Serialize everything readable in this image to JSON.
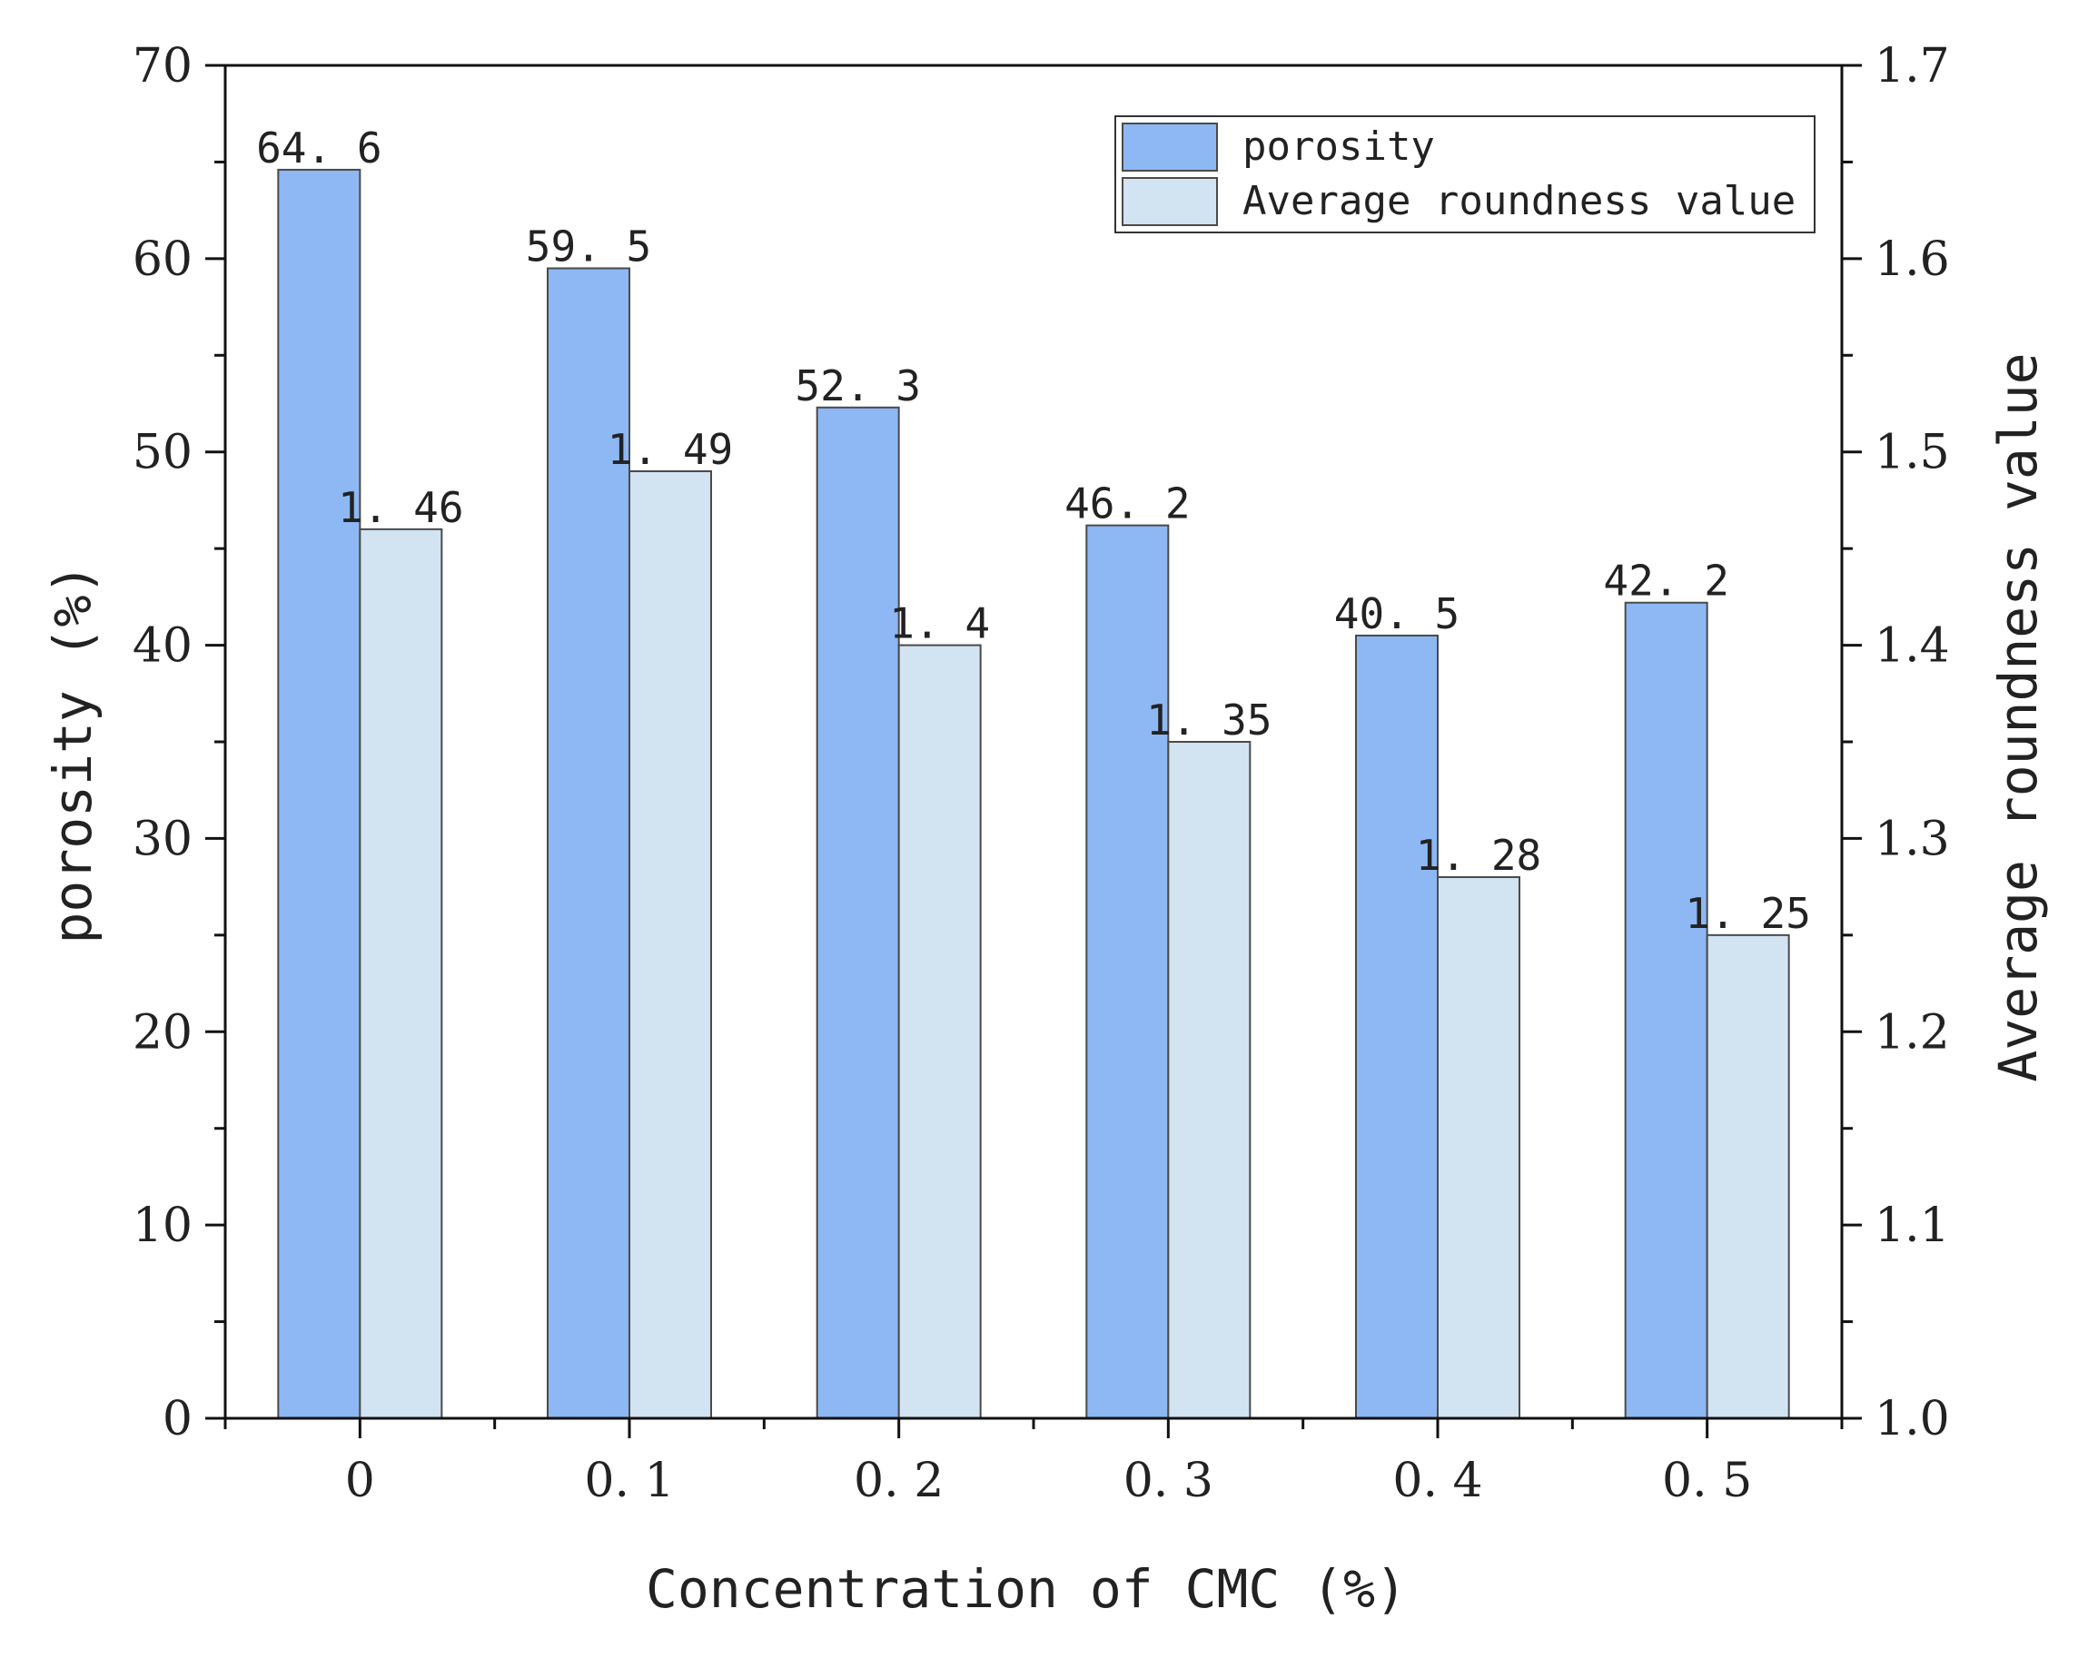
{
  "chart_data": {
    "type": "bar",
    "categories": [
      "0",
      "0.1",
      "0.2",
      "0.3",
      "0.4",
      "0.5"
    ],
    "xlabel": "Concentration of CMC (%)",
    "ylabel": "porosity (%)",
    "y2label": "Average roundness value",
    "ylim": [
      0,
      70
    ],
    "y2lim": [
      1.0,
      1.7
    ],
    "yticks": [
      "0",
      "10",
      "20",
      "30",
      "40",
      "50",
      "60",
      "70"
    ],
    "y2ticks": [
      "1.0",
      "1.1",
      "1.2",
      "1.3",
      "1.4",
      "1.5",
      "1.6",
      "1.7"
    ],
    "xticks": [
      "0",
      "0. 1",
      "0. 2",
      "0. 3",
      "0. 4",
      "0. 5"
    ],
    "grid": false,
    "legend_position": "top-right",
    "series": [
      {
        "name": "porosity",
        "axis": "left",
        "color": "#8db8f3",
        "values": [
          64.6,
          59.5,
          52.3,
          46.2,
          40.5,
          42.2
        ],
        "labels": [
          "64. 6",
          "59. 5",
          "52. 3",
          "46. 2",
          "40. 5",
          "42. 2"
        ]
      },
      {
        "name": "Average roundness value",
        "axis": "right",
        "color": "#d2e3f1",
        "values": [
          1.46,
          1.49,
          1.4,
          1.35,
          1.28,
          1.25
        ],
        "labels": [
          "1. 46",
          "1. 49",
          "1. 4",
          "1. 35",
          "1. 28",
          "1. 25"
        ]
      }
    ]
  }
}
